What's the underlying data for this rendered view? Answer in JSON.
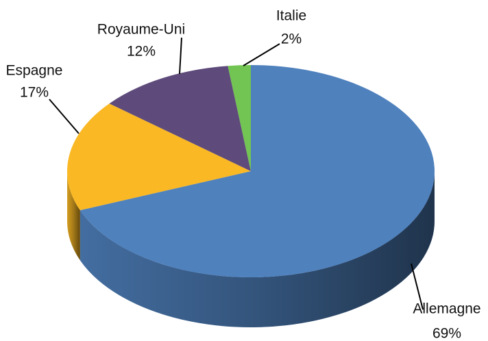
{
  "chart_data": {
    "type": "pie",
    "categories": [
      "Allemagne",
      "Espagne",
      "Royaume-Uni",
      "Italie"
    ],
    "values": [
      69,
      17,
      12,
      2
    ],
    "value_labels": [
      "69%",
      "17%",
      "12%",
      "2%"
    ],
    "colors": [
      "#4f81bd",
      "#f9b824",
      "#5f4b7b",
      "#72c552"
    ]
  }
}
